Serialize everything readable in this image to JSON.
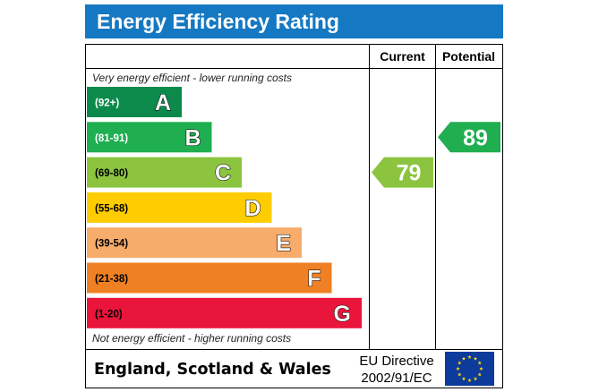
{
  "chart_data": {
    "type": "bar",
    "title": "Energy Efficiency Rating",
    "columns": [
      "Current",
      "Potential"
    ],
    "top_note": "Very energy efficient - lower running costs",
    "bottom_note": "Not energy efficient - higher running costs",
    "bands": [
      {
        "range": "(92+)",
        "letter": "A",
        "color": "#0c8a4c",
        "range_color": "#ffffff"
      },
      {
        "range": "(81-91)",
        "letter": "B",
        "color": "#1fae50",
        "range_color": "#ffffff"
      },
      {
        "range": "(69-80)",
        "letter": "C",
        "color": "#8cc43f",
        "range_color": "#000000"
      },
      {
        "range": "(55-68)",
        "letter": "D",
        "color": "#ffcc00",
        "range_color": "#000000"
      },
      {
        "range": "(39-54)",
        "letter": "E",
        "color": "#f7ac6b",
        "range_color": "#000000"
      },
      {
        "range": "(21-38)",
        "letter": "F",
        "color": "#ef8023",
        "range_color": "#000000"
      },
      {
        "range": "(1-20)",
        "letter": "G",
        "color": "#e9153b",
        "range_color": "#000000"
      }
    ],
    "current": {
      "value": 79,
      "band": "C",
      "color": "#8cc43f"
    },
    "potential": {
      "value": 89,
      "band": "B",
      "color": "#1fae50"
    },
    "footer": {
      "region": "England, Scotland & Wales",
      "directive_line1": "EU Directive",
      "directive_line2": "2002/91/EC"
    },
    "colors": {
      "header": "#1578c2",
      "eu_flag": "#0d3b9c",
      "eu_stars": "#ffdd00"
    }
  }
}
